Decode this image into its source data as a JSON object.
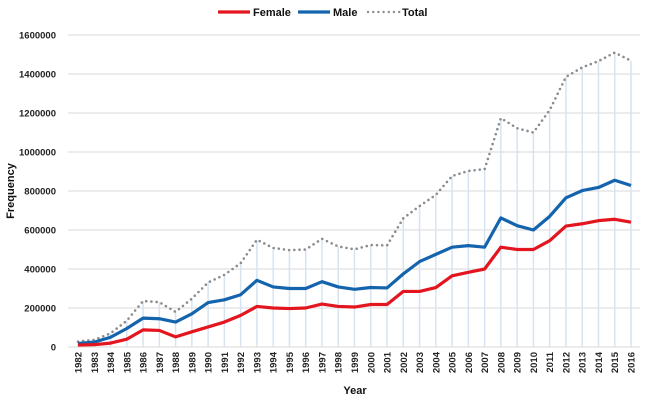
{
  "chart_data": {
    "type": "line",
    "title": "",
    "xlabel": "Year",
    "ylabel": "Frequency",
    "ylim": [
      0,
      1600000
    ],
    "yticks": [
      0,
      200000,
      400000,
      600000,
      800000,
      1000000,
      1200000,
      1400000,
      1600000
    ],
    "ytick_labels": [
      "0",
      "200000",
      "400000",
      "600000",
      "800000",
      "1000000",
      "1200000",
      "1400000",
      "1600000"
    ],
    "grid": "horizontal",
    "legend_position": "top-center",
    "x": [
      "1982",
      "1983",
      "1984",
      "1985",
      "1986",
      "1987",
      "1988",
      "1989",
      "1990",
      "1991",
      "1992",
      "1993",
      "1994",
      "1995",
      "1996",
      "1997",
      "1998",
      "1999",
      "2000",
      "2001",
      "2002",
      "2003",
      "2004",
      "2005",
      "2006",
      "2007",
      "2008",
      "2009",
      "2010",
      "2011",
      "2012",
      "2013",
      "2014",
      "2015",
      "2016"
    ],
    "series": [
      {
        "name": "Female",
        "color": "#e3161f",
        "style": "solid",
        "values": [
          10000,
          12000,
          20000,
          40000,
          88000,
          85000,
          52000,
          78000,
          103000,
          128000,
          162000,
          208000,
          200000,
          197000,
          200000,
          220000,
          208000,
          205000,
          218000,
          218000,
          285000,
          285000,
          305000,
          365000,
          383000,
          400000,
          512000,
          500000,
          500000,
          545000,
          620000,
          632000,
          648000,
          655000,
          640000
        ]
      },
      {
        "name": "Male",
        "color": "#1464ad",
        "style": "solid",
        "values": [
          18000,
          25000,
          50000,
          95000,
          148000,
          145000,
          128000,
          170000,
          228000,
          242000,
          268000,
          342000,
          308000,
          300000,
          300000,
          335000,
          308000,
          296000,
          305000,
          303000,
          375000,
          438000,
          475000,
          512000,
          520000,
          512000,
          662000,
          622000,
          600000,
          670000,
          765000,
          802000,
          818000,
          855000,
          828000
        ]
      },
      {
        "name": "Total",
        "color": "#8c8c8c",
        "style": "dotted",
        "values": [
          28000,
          37000,
          70000,
          135000,
          236000,
          230000,
          180000,
          248000,
          331000,
          370000,
          430000,
          550000,
          508000,
          497000,
          500000,
          555000,
          516000,
          501000,
          523000,
          521000,
          660000,
          723000,
          780000,
          877000,
          903000,
          912000,
          1174000,
          1122000,
          1100000,
          1215000,
          1385000,
          1434000,
          1466000,
          1510000,
          1468000
        ]
      }
    ]
  }
}
